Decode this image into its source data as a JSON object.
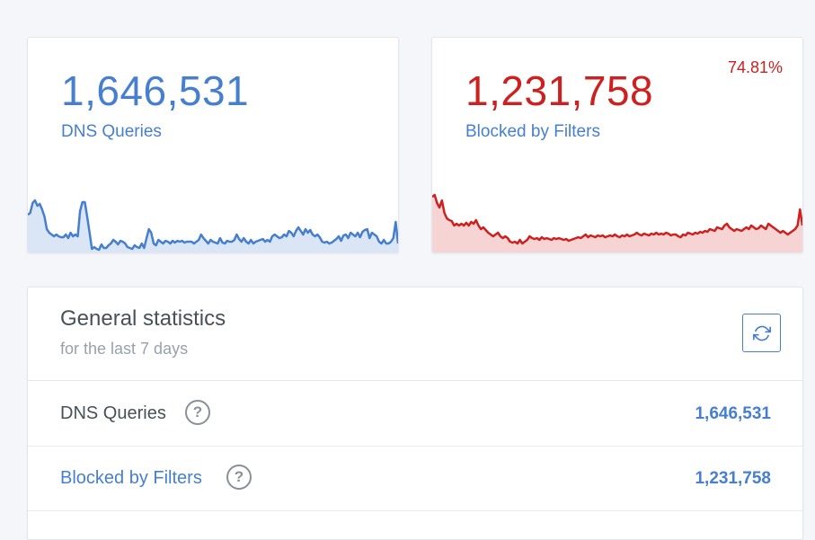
{
  "cards": {
    "queries": {
      "value": "1,646,531",
      "label": "DNS Queries",
      "color": "#467fcf",
      "fill": "#dae5f5",
      "sparkline_level": [
        0.42,
        0.44,
        0.55,
        0.58,
        0.52,
        0.54,
        0.48,
        0.4,
        0.26,
        0.22,
        0.2,
        0.18,
        0.2,
        0.18,
        0.17,
        0.17,
        0.2,
        0.16,
        0.22,
        0.18,
        0.2,
        0.18,
        0.46,
        0.56,
        0.56,
        0.4,
        0.22,
        0.04,
        0.06,
        0.04,
        0.03,
        0.09,
        0.05,
        0.05,
        0.08,
        0.1,
        0.14,
        0.12,
        0.09,
        0.13,
        0.12,
        0.1,
        0.06,
        0.05,
        0.04,
        0.08,
        0.06,
        0.05,
        0.1,
        0.05,
        0.16,
        0.26,
        0.22,
        0.1,
        0.08,
        0.14,
        0.12,
        0.1,
        0.13,
        0.12,
        0.1,
        0.13,
        0.11,
        0.13,
        0.12,
        0.13,
        0.11,
        0.12,
        0.12,
        0.12,
        0.1,
        0.12,
        0.14,
        0.2,
        0.16,
        0.13,
        0.1,
        0.14,
        0.12,
        0.11,
        0.1,
        0.16,
        0.11,
        0.1,
        0.13,
        0.12,
        0.12,
        0.14,
        0.2,
        0.15,
        0.12,
        0.16,
        0.12,
        0.1,
        0.14,
        0.1,
        0.12,
        0.13,
        0.14,
        0.15,
        0.12,
        0.14,
        0.12,
        0.18,
        0.2,
        0.18,
        0.16,
        0.17,
        0.2,
        0.18,
        0.24,
        0.22,
        0.18,
        0.24,
        0.28,
        0.24,
        0.2,
        0.26,
        0.22,
        0.25,
        0.2,
        0.18,
        0.2,
        0.17,
        0.12,
        0.11,
        0.12,
        0.1,
        0.11,
        0.13,
        0.15,
        0.18,
        0.13,
        0.19,
        0.2,
        0.16,
        0.22,
        0.2,
        0.18,
        0.22,
        0.17,
        0.23,
        0.25,
        0.26,
        0.16,
        0.22,
        0.2,
        0.18,
        0.12,
        0.1,
        0.14,
        0.1,
        0.1,
        0.12,
        0.16,
        0.34,
        0.1
      ]
    },
    "blocked": {
      "value": "1,231,758",
      "label": "Blocked by Filters",
      "percent": "74.81%",
      "color": "#cd201f",
      "fill": "#f6d4d3",
      "sparkline_level": [
        0.62,
        0.64,
        0.55,
        0.5,
        0.58,
        0.44,
        0.38,
        0.36,
        0.35,
        0.3,
        0.32,
        0.3,
        0.32,
        0.3,
        0.33,
        0.3,
        0.34,
        0.32,
        0.36,
        0.3,
        0.26,
        0.28,
        0.25,
        0.22,
        0.2,
        0.18,
        0.2,
        0.22,
        0.18,
        0.16,
        0.18,
        0.16,
        0.12,
        0.11,
        0.12,
        0.1,
        0.14,
        0.1,
        0.12,
        0.14,
        0.18,
        0.16,
        0.15,
        0.16,
        0.14,
        0.17,
        0.15,
        0.16,
        0.15,
        0.14,
        0.16,
        0.15,
        0.16,
        0.15,
        0.14,
        0.15,
        0.13,
        0.14,
        0.15,
        0.16,
        0.17,
        0.16,
        0.18,
        0.2,
        0.17,
        0.19,
        0.18,
        0.17,
        0.19,
        0.18,
        0.19,
        0.17,
        0.18,
        0.19,
        0.18,
        0.2,
        0.18,
        0.17,
        0.19,
        0.18,
        0.2,
        0.18,
        0.19,
        0.2,
        0.22,
        0.2,
        0.19,
        0.21,
        0.2,
        0.19,
        0.21,
        0.2,
        0.22,
        0.2,
        0.21,
        0.2,
        0.22,
        0.21,
        0.19,
        0.2,
        0.2,
        0.18,
        0.17,
        0.2,
        0.19,
        0.22,
        0.21,
        0.2,
        0.22,
        0.21,
        0.23,
        0.22,
        0.24,
        0.23,
        0.26,
        0.25,
        0.24,
        0.28,
        0.27,
        0.26,
        0.3,
        0.32,
        0.28,
        0.26,
        0.24,
        0.26,
        0.25,
        0.24,
        0.26,
        0.28,
        0.26,
        0.3,
        0.28,
        0.26,
        0.27,
        0.3,
        0.28,
        0.26,
        0.32,
        0.3,
        0.28,
        0.26,
        0.24,
        0.22,
        0.24,
        0.22,
        0.2,
        0.22,
        0.24,
        0.26,
        0.3,
        0.48,
        0.3
      ]
    }
  },
  "general": {
    "title": "General statistics",
    "subtitle": "for the last 7 days",
    "refresh_icon": "refresh-icon",
    "rows": [
      {
        "label": "DNS Queries",
        "value": "1,646,531",
        "help_icon": "?"
      },
      {
        "label": "Blocked by Filters",
        "value": "1,231,758",
        "help_icon": "?"
      }
    ]
  }
}
